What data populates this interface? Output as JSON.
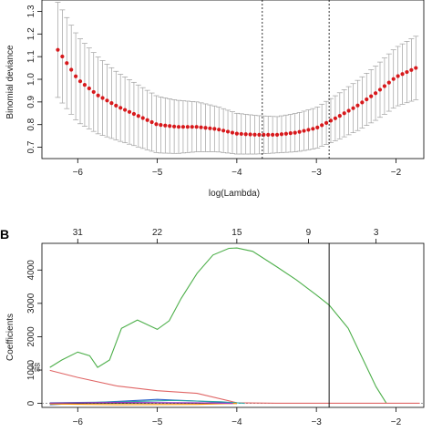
{
  "chart_data": [
    {
      "type": "scatter",
      "panel": "",
      "title": "",
      "xlabel": "log(Lambda)",
      "ylabel": "Binomial deviance",
      "xlim": [
        -6.45,
        -1.65
      ],
      "ylim": [
        0.65,
        1.35
      ],
      "xticks": [
        -6,
        -5,
        -4,
        -3,
        -2
      ],
      "xtick_labels": [
        "−6",
        "−5",
        "−4",
        "−3",
        "−2"
      ],
      "yticks": [
        0.7,
        0.8,
        0.9,
        1.0,
        1.1,
        1.2,
        1.3
      ],
      "ytick_labels": [
        "0.7",
        "0.8",
        "0.9",
        "1.0",
        "1.1",
        "1.2",
        "1.3"
      ],
      "grid": false,
      "vlines": [
        -3.68,
        -2.84
      ],
      "point_color": "#d7191c",
      "errorbar_color": "#a0a0a0",
      "x_start": -6.25,
      "x_end": -1.75,
      "n_points": 81,
      "mean_anchors": {
        "x": [
          -6.25,
          -6.0,
          -5.75,
          -5.5,
          -5.25,
          -5.0,
          -4.75,
          -4.5,
          -4.25,
          -4.0,
          -3.75,
          -3.5,
          -3.25,
          -3.0,
          -2.75,
          -2.5,
          -2.25,
          -2.0,
          -1.75
        ],
        "y": [
          1.13,
          1.0,
          0.93,
          0.88,
          0.84,
          0.8,
          0.79,
          0.79,
          0.78,
          0.76,
          0.755,
          0.755,
          0.765,
          0.785,
          0.83,
          0.88,
          0.94,
          1.01,
          1.05
        ]
      },
      "error_anchors": {
        "x": [
          -6.25,
          -6.0,
          -5.5,
          -5.0,
          -4.5,
          -4.0,
          -3.5,
          -3.0,
          -2.5,
          -2.0,
          -1.75
        ],
        "half_width": [
          0.21,
          0.19,
          0.15,
          0.125,
          0.11,
          0.09,
          0.08,
          0.09,
          0.11,
          0.13,
          0.14
        ]
      }
    },
    {
      "type": "line",
      "panel": "B",
      "title": "",
      "xlabel": "",
      "ylabel": "Coefficients",
      "xlim": [
        -6.45,
        -1.65
      ],
      "ylim": [
        -120,
        4800
      ],
      "xticks": [
        -6,
        -5,
        -4,
        -3,
        -2
      ],
      "xtick_labels": [
        "−6",
        "−5",
        "−4",
        "−3",
        "−2"
      ],
      "yticks": [
        0,
        1000,
        2000,
        3000,
        4000
      ],
      "ytick_labels": [
        "0",
        "1000",
        "2000",
        "3000",
        "4000"
      ],
      "top_ticks": [
        -6.0,
        -5.0,
        -4.0,
        -3.1,
        -2.25
      ],
      "top_tick_labels": [
        "31",
        "22",
        "15",
        "9",
        "3"
      ],
      "vlines": [
        -2.84
      ],
      "left_labels": [
        {
          "text": "146",
          "y": 1150
        },
        {
          "text": "165",
          "y": 1020
        }
      ],
      "series": [
        {
          "color": "#4daf4a",
          "x": [
            -6.35,
            -6.2,
            -6.0,
            -5.85,
            -5.75,
            -5.6,
            -5.45,
            -5.25,
            -5.0,
            -4.85,
            -4.7,
            -4.5,
            -4.3,
            -4.1,
            -4.0,
            -3.8,
            -3.5,
            -3.25,
            -3.0,
            -2.84,
            -2.6,
            -2.4,
            -2.25,
            -2.12
          ],
          "y": [
            1080,
            1300,
            1540,
            1430,
            1080,
            1300,
            2250,
            2500,
            2220,
            2480,
            3150,
            3900,
            4450,
            4650,
            4660,
            4560,
            4100,
            3700,
            3250,
            2950,
            2250,
            1250,
            500,
            0
          ]
        },
        {
          "color": "#e06666",
          "x": [
            -6.35,
            -6.0,
            -5.5,
            -5.0,
            -4.5,
            -4.0,
            -3.5,
            -3.0,
            -2.5,
            -2.0,
            -1.7
          ],
          "y": [
            990,
            780,
            520,
            380,
            300,
            20,
            5,
            5,
            5,
            5,
            5
          ]
        },
        {
          "color": "#3366cc",
          "x": [
            -6.35,
            -5.5,
            -5.0,
            -4.5,
            -4.0
          ],
          "y": [
            -40,
            60,
            120,
            70,
            0
          ]
        },
        {
          "color": "#222222",
          "x": [
            -6.35,
            -5.0,
            -4.0
          ],
          "y": [
            5,
            15,
            0
          ]
        },
        {
          "color": "#2ca6a4",
          "x": [
            -6.35,
            -5.5,
            -4.8,
            -4.2,
            -3.9
          ],
          "y": [
            20,
            40,
            90,
            50,
            0
          ]
        },
        {
          "color": "#ff9900",
          "x": [
            -6.35,
            -5.5,
            -4.5,
            -4.0
          ],
          "y": [
            -15,
            -40,
            -30,
            0
          ]
        },
        {
          "color": "#9933cc",
          "x": [
            -6.35,
            -5.5,
            -4.5,
            -4.05
          ],
          "y": [
            10,
            30,
            20,
            0
          ]
        }
      ]
    }
  ]
}
